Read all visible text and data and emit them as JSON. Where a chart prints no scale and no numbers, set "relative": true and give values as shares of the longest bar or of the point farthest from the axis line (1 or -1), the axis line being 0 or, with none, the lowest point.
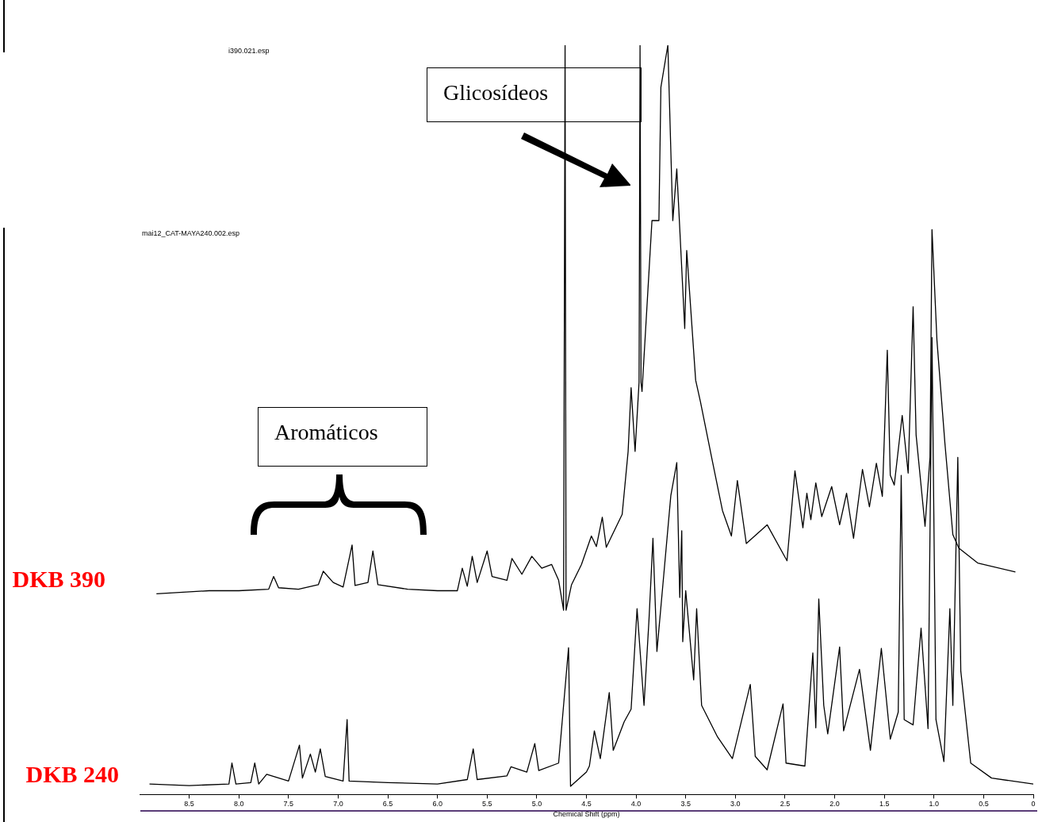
{
  "chart_data": {
    "type": "line",
    "xlabel": "Chemical Shift (ppm)",
    "relative": true,
    "xlim": [
      9,
      0
    ],
    "xticks": [
      8.5,
      {
        "value": 8,
        "label": "8.0"
      },
      7.5,
      {
        "value": 7,
        "label": "7.0"
      },
      6.5,
      {
        "value": 6,
        "label": "6.0"
      },
      5.5,
      {
        "value": 5,
        "label": "5.0"
      },
      4.5,
      {
        "value": 4,
        "label": "4.0"
      },
      3.5,
      {
        "value": 3,
        "label": "3.0"
      },
      2.5,
      {
        "value": 2,
        "label": "2.0"
      },
      1.5,
      {
        "value": 1,
        "label": "1.0"
      },
      0.5,
      0
    ],
    "annotations": [
      "i390.021.esp",
      "mai12_CAT-MAYA240.002.esp",
      "Glicosídeos",
      "Aromáticos"
    ],
    "series": [
      {
        "name": "DKB 390",
        "color": "#000000",
        "x": [
          8.83,
          8.3,
          8.0,
          7.7,
          7.65,
          7.6,
          7.4,
          7.2,
          7.15,
          7.05,
          6.95,
          6.86,
          6.83,
          6.7,
          6.65,
          6.6,
          6.3,
          6.0,
          5.8,
          5.75,
          5.7,
          5.65,
          5.6,
          5.5,
          5.45,
          5.3,
          5.25,
          5.15,
          5.05,
          4.95,
          4.85,
          4.78,
          4.73,
          4.715,
          4.705,
          4.65,
          4.55,
          4.45,
          4.4,
          4.34,
          4.3,
          4.14,
          4.08,
          4.05,
          4.01,
          3.97,
          3.96,
          3.95,
          3.94,
          3.84,
          3.77,
          3.75,
          3.68,
          3.63,
          3.59,
          3.51,
          3.49,
          3.4,
          3.35,
          3.23,
          3.13,
          3.04,
          2.98,
          2.89,
          2.68,
          2.48,
          2.4,
          2.32,
          2.28,
          2.24,
          2.19,
          2.13,
          2.03,
          1.95,
          1.88,
          1.81,
          1.72,
          1.65,
          1.58,
          1.52,
          1.47,
          1.44,
          1.4,
          1.32,
          1.26,
          1.21,
          1.18,
          1.09,
          1.04,
          1.02,
          0.97,
          0.89,
          0.81,
          0.75,
          0.56,
          0.18
        ],
        "values": [
          0.268,
          0.272,
          0.272,
          0.274,
          0.291,
          0.276,
          0.274,
          0.28,
          0.298,
          0.283,
          0.277,
          0.333,
          0.279,
          0.283,
          0.325,
          0.28,
          0.274,
          0.272,
          0.272,
          0.302,
          0.278,
          0.318,
          0.283,
          0.325,
          0.291,
          0.286,
          0.315,
          0.294,
          0.318,
          0.302,
          0.307,
          0.286,
          0.246,
          1.0,
          0.246,
          0.28,
          0.307,
          0.345,
          0.331,
          0.37,
          0.33,
          0.374,
          0.458,
          0.543,
          0.458,
          0.55,
          1.0,
          0.55,
          0.538,
          0.766,
          0.766,
          0.944,
          1.0,
          0.766,
          0.835,
          0.622,
          0.726,
          0.553,
          0.523,
          0.444,
          0.379,
          0.345,
          0.419,
          0.335,
          0.36,
          0.312,
          0.432,
          0.356,
          0.402,
          0.367,
          0.416,
          0.371,
          0.411,
          0.36,
          0.402,
          0.342,
          0.434,
          0.384,
          0.442,
          0.398,
          0.593,
          0.426,
          0.413,
          0.506,
          0.429,
          0.651,
          0.48,
          0.358,
          0.45,
          0.754,
          0.606,
          0.469,
          0.347,
          0.329,
          0.309,
          0.297
        ]
      },
      {
        "name": "DKB 240",
        "color": "#000000",
        "x": [
          8.9,
          8.5,
          8.1,
          8.07,
          8.03,
          7.88,
          7.84,
          7.8,
          7.72,
          7.5,
          7.39,
          7.36,
          7.28,
          7.23,
          7.18,
          7.13,
          6.95,
          6.91,
          6.89,
          6.5,
          6.0,
          5.7,
          5.64,
          5.6,
          5.3,
          5.26,
          5.1,
          5.02,
          4.98,
          4.78,
          4.68,
          4.66,
          4.5,
          4.47,
          4.42,
          4.36,
          4.27,
          4.23,
          4.12,
          4.05,
          3.99,
          3.92,
          3.87,
          3.83,
          3.79,
          3.73,
          3.65,
          3.59,
          3.56,
          3.54,
          3.53,
          3.5,
          3.42,
          3.39,
          3.34,
          3.18,
          3.03,
          2.85,
          2.8,
          2.68,
          2.52,
          2.49,
          2.3,
          2.22,
          2.19,
          2.16,
          2.11,
          2.07,
          1.95,
          1.91,
          1.75,
          1.64,
          1.53,
          1.44,
          1.36,
          1.33,
          1.3,
          1.21,
          1.13,
          1.06,
          1.02,
          0.98,
          0.9,
          0.84,
          0.81,
          0.76,
          0.73,
          0.63,
          0.42,
          0.0
        ],
        "values": [
          0.014,
          0.012,
          0.014,
          0.042,
          0.014,
          0.016,
          0.042,
          0.014,
          0.027,
          0.018,
          0.066,
          0.022,
          0.054,
          0.03,
          0.061,
          0.024,
          0.018,
          0.1,
          0.018,
          0.016,
          0.014,
          0.02,
          0.061,
          0.02,
          0.025,
          0.037,
          0.03,
          0.068,
          0.032,
          0.042,
          0.196,
          0.011,
          0.03,
          0.038,
          0.085,
          0.048,
          0.136,
          0.059,
          0.097,
          0.114,
          0.248,
          0.119,
          0.233,
          0.342,
          0.191,
          0.28,
          0.399,
          0.443,
          0.263,
          0.352,
          0.204,
          0.272,
          0.153,
          0.248,
          0.119,
          0.077,
          0.048,
          0.147,
          0.051,
          0.033,
          0.121,
          0.042,
          0.038,
          0.189,
          0.089,
          0.261,
          0.119,
          0.081,
          0.197,
          0.085,
          0.167,
          0.059,
          0.195,
          0.074,
          0.11,
          0.426,
          0.1,
          0.093,
          0.222,
          0.088,
          0.61,
          0.1,
          0.044,
          0.248,
          0.119,
          0.45,
          0.165,
          0.042,
          0.022,
          0.014
        ]
      }
    ]
  }
}
